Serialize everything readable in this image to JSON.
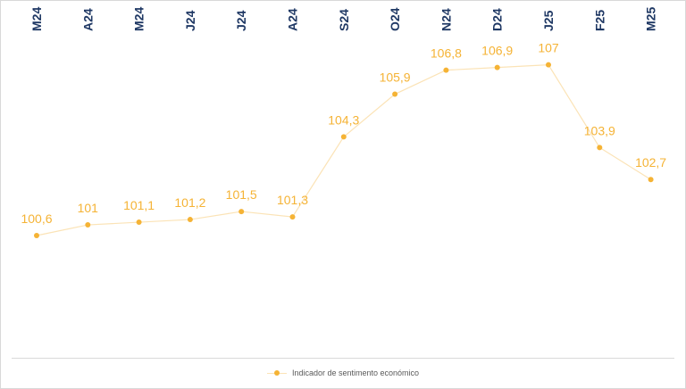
{
  "chart_data": {
    "type": "line",
    "categories": [
      "M24",
      "A24",
      "M24",
      "J24",
      "J24",
      "A24",
      "S24",
      "O24",
      "N24",
      "D24",
      "J25",
      "F25",
      "M25"
    ],
    "series": [
      {
        "name": "Indicador de sentimento económico",
        "values": [
          100.6,
          101,
          101.1,
          101.2,
          101.5,
          101.3,
          104.3,
          105.9,
          106.8,
          106.9,
          107,
          103.9,
          102.7
        ],
        "labels": [
          "100,6",
          "101",
          "101,1",
          "101,2",
          "101,5",
          "101,3",
          "104,3",
          "105,9",
          "106,8",
          "106,9",
          "107",
          "103,9",
          "102,7"
        ]
      }
    ],
    "title": "",
    "xlabel": "",
    "ylabel": "",
    "x_axis_position": "top",
    "grid": false,
    "legend_position": "bottom",
    "colors": {
      "series": "#f5b335",
      "line": "#fbe3b6",
      "tick_labels": "#1f3864"
    }
  }
}
